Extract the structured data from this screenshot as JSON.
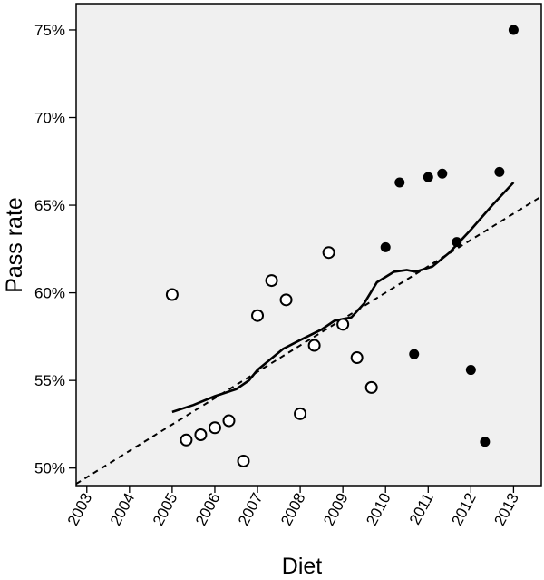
{
  "chart_data": {
    "type": "scatter",
    "xlabel": "Diet",
    "ylabel": "Pass rate",
    "x_ticks": [
      "2003",
      "2004",
      "2005",
      "2006",
      "2007",
      "2008",
      "2009",
      "2010",
      "2011",
      "2012",
      "2013"
    ],
    "y_ticks": [
      "50%",
      "55%",
      "60%",
      "65%",
      "70%",
      "75%"
    ],
    "xlim": [
      2002.75,
      2013.65
    ],
    "ylim": [
      49,
      76.5
    ],
    "grid": false,
    "plot_background": "#f0f0f0",
    "series": [
      {
        "marker": "open-circle",
        "points": [
          {
            "x": 2005.0,
            "y": 59.9
          },
          {
            "x": 2005.33,
            "y": 51.6
          },
          {
            "x": 2005.67,
            "y": 51.9
          },
          {
            "x": 2006.0,
            "y": 52.3
          },
          {
            "x": 2006.33,
            "y": 52.7
          },
          {
            "x": 2006.67,
            "y": 50.4
          },
          {
            "x": 2007.0,
            "y": 58.7
          },
          {
            "x": 2007.33,
            "y": 60.7
          },
          {
            "x": 2007.67,
            "y": 59.6
          },
          {
            "x": 2008.0,
            "y": 53.1
          },
          {
            "x": 2008.33,
            "y": 57.0
          },
          {
            "x": 2008.67,
            "y": 62.3
          },
          {
            "x": 2009.0,
            "y": 58.2
          },
          {
            "x": 2009.33,
            "y": 56.3
          },
          {
            "x": 2009.67,
            "y": 54.6
          }
        ]
      },
      {
        "marker": "filled-circle",
        "points": [
          {
            "x": 2010.0,
            "y": 62.6
          },
          {
            "x": 2010.33,
            "y": 66.3
          },
          {
            "x": 2010.67,
            "y": 56.5
          },
          {
            "x": 2011.0,
            "y": 66.6
          },
          {
            "x": 2011.33,
            "y": 66.8
          },
          {
            "x": 2011.67,
            "y": 62.9
          },
          {
            "x": 2012.0,
            "y": 55.6
          },
          {
            "x": 2012.33,
            "y": 51.5
          },
          {
            "x": 2012.67,
            "y": 66.9
          },
          {
            "x": 2013.0,
            "y": 75.0
          }
        ]
      }
    ],
    "fit_lines": [
      {
        "style": "solid",
        "points": [
          {
            "x": 2005.0,
            "y": 53.2
          },
          {
            "x": 2005.5,
            "y": 53.6
          },
          {
            "x": 2006.0,
            "y": 54.1
          },
          {
            "x": 2006.5,
            "y": 54.5
          },
          {
            "x": 2006.8,
            "y": 55.0
          },
          {
            "x": 2007.0,
            "y": 55.6
          },
          {
            "x": 2007.3,
            "y": 56.2
          },
          {
            "x": 2007.6,
            "y": 56.8
          },
          {
            "x": 2008.0,
            "y": 57.3
          },
          {
            "x": 2008.5,
            "y": 57.9
          },
          {
            "x": 2008.8,
            "y": 58.4
          },
          {
            "x": 2009.2,
            "y": 58.6
          },
          {
            "x": 2009.5,
            "y": 59.4
          },
          {
            "x": 2009.8,
            "y": 60.6
          },
          {
            "x": 2010.2,
            "y": 61.2
          },
          {
            "x": 2010.5,
            "y": 61.3
          },
          {
            "x": 2010.7,
            "y": 61.2
          },
          {
            "x": 2011.1,
            "y": 61.5
          },
          {
            "x": 2011.5,
            "y": 62.3
          },
          {
            "x": 2012.0,
            "y": 63.6
          },
          {
            "x": 2012.5,
            "y": 65.0
          },
          {
            "x": 2013.0,
            "y": 66.3
          }
        ]
      },
      {
        "style": "dashed",
        "points": [
          {
            "x": 2002.75,
            "y": 49.1
          },
          {
            "x": 2013.65,
            "y": 65.5
          }
        ]
      }
    ],
    "colors": {
      "plot_background": "#f0f0f0",
      "marker": "#000000",
      "line": "#000000"
    }
  }
}
